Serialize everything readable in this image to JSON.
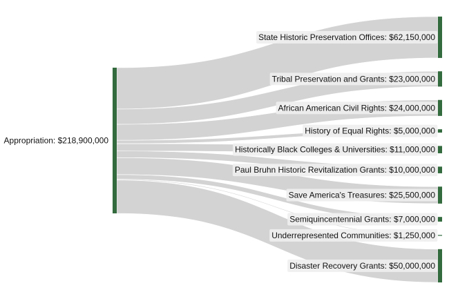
{
  "chart_data": {
    "type": "sankey",
    "source": {
      "label": "Appropriation: $218,900,000",
      "value": 218900000
    },
    "targets": [
      {
        "label": "State Historic Preservation Offices: $62,150,000",
        "value": 62150000
      },
      {
        "label": "Tribal Preservation and Grants: $23,000,000",
        "value": 23000000
      },
      {
        "label": "African American Civil Rights: $24,000,000",
        "value": 24000000
      },
      {
        "label": "History of Equal Rights: $5,000,000",
        "value": 5000000
      },
      {
        "label": "Historically Black Colleges & Universities: $11,000,000",
        "value": 11000000
      },
      {
        "label": "Paul Bruhn Historic Revitalization Grants: $10,000,000",
        "value": 10000000
      },
      {
        "label": "Save America's Treasures: $25,500,000",
        "value": 25500000
      },
      {
        "label": "Semiquincentennial Grants: $7,000,000",
        "value": 7000000
      },
      {
        "label": "Underrepresented Communities: $1,250,000",
        "value": 1250000
      },
      {
        "label": "Disaster Recovery Grants: $50,000,000",
        "value": 50000000
      }
    ],
    "colors": {
      "node": "#336b3f",
      "link": "#d3d3d3",
      "label_bg": "#eeeeee",
      "text": "#111111"
    }
  }
}
